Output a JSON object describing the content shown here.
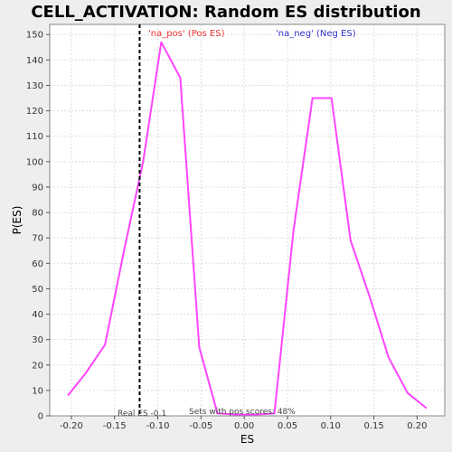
{
  "chart_data": {
    "type": "line",
    "title": "CELL_ACTIVATION: Random ES distribution",
    "xlabel": "ES",
    "ylabel": "P(ES)",
    "xlim": [
      -0.225,
      0.232
    ],
    "ylim": [
      0,
      154
    ],
    "x_ticks": [
      -0.2,
      -0.15,
      -0.1,
      -0.05,
      0.0,
      0.05,
      0.1,
      0.15,
      0.2
    ],
    "x_tick_labels": [
      "-0.20",
      "-0.15",
      "-0.10",
      "-0.05",
      "0.00",
      "0.05",
      "0.10",
      "0.15",
      "0.20"
    ],
    "y_ticks": [
      0,
      10,
      20,
      30,
      40,
      50,
      60,
      70,
      80,
      90,
      100,
      110,
      120,
      130,
      140,
      150
    ],
    "y_tick_labels": [
      "0",
      "10",
      "20",
      "30",
      "40",
      "50",
      "60",
      "70",
      "80",
      "90",
      "100",
      "110",
      "120",
      "130",
      "140",
      "150"
    ],
    "grid": true,
    "series": [
      {
        "color": "#ff44ff",
        "x": [
          -0.204,
          -0.183,
          -0.161,
          -0.139,
          -0.117,
          -0.096,
          -0.074,
          -0.052,
          -0.031,
          -0.009,
          0.013,
          0.035,
          0.057,
          0.079,
          0.101,
          0.123,
          0.145,
          0.167,
          0.189,
          0.211
        ],
        "y": [
          8,
          17,
          28,
          65,
          100,
          147,
          133,
          27,
          1,
          0.5,
          0.5,
          1,
          73,
          125,
          125,
          69,
          47,
          23,
          9,
          3
        ]
      }
    ],
    "reference_line": {
      "x": -0.121,
      "color": "#000000",
      "style": "dashed",
      "label": "Real ES -0.1"
    },
    "annotations": {
      "pos": {
        "text": "'na_pos' (Pos ES)",
        "color": "#ee3333"
      },
      "neg": {
        "text": "'na_neg' (Neg ES)",
        "color": "#3333cc"
      },
      "sets_with_pos": "Sets with pos scores: 48%"
    },
    "colors": {
      "background": "#eeeeee",
      "plot_background": "#ffffff",
      "grid": "#dddddd",
      "line": "#ff44ff"
    }
  }
}
